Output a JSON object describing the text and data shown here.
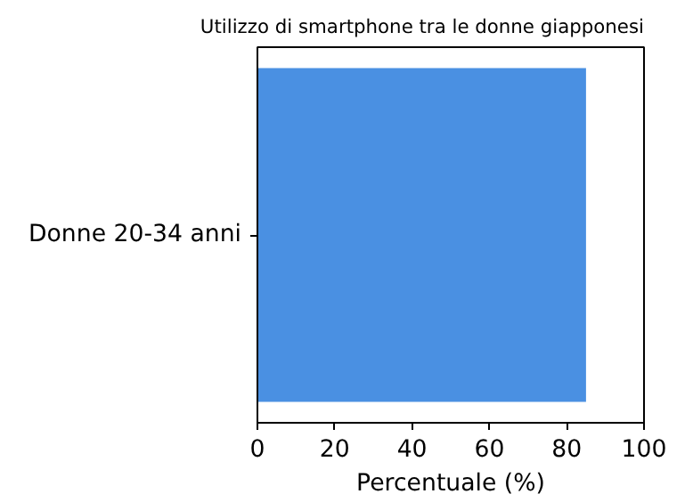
{
  "chart_data": {
    "type": "bar",
    "orientation": "horizontal",
    "title": "Utilizzo di smartphone tra le donne giapponesi",
    "xlabel": "Percentuale (%)",
    "categories": [
      "Donne 20-34 anni"
    ],
    "series": [
      {
        "color": "#4a90e2",
        "values": [
          85
        ]
      }
    ],
    "xlim": [
      0,
      100
    ],
    "xticks": [
      0,
      20,
      40,
      60,
      80,
      100
    ],
    "grid": false
  }
}
